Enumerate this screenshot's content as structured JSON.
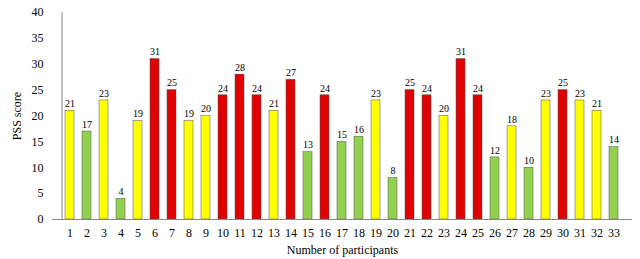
{
  "chart_data": {
    "type": "bar",
    "x_label": "Number of participants",
    "y_label": "PSS score",
    "categories": [
      "1",
      "2",
      "3",
      "4",
      "5",
      "6",
      "7",
      "8",
      "9",
      "10",
      "11",
      "12",
      "13",
      "14",
      "15",
      "16",
      "17",
      "18",
      "19",
      "20",
      "21",
      "22",
      "23",
      "24",
      "25",
      "26",
      "27",
      "28",
      "29",
      "30",
      "31",
      "32",
      "33"
    ],
    "values": [
      21,
      17,
      23,
      4,
      19,
      31,
      25,
      19,
      20,
      24,
      28,
      24,
      21,
      27,
      13,
      24,
      15,
      16,
      23,
      8,
      25,
      24,
      20,
      31,
      24,
      12,
      18,
      10,
      23,
      25,
      23,
      21,
      14
    ],
    "colors": [
      "#ffff00",
      "#92d050",
      "#ffff00",
      "#92d050",
      "#ffff00",
      "#e00000",
      "#e00000",
      "#ffff00",
      "#ffff00",
      "#e00000",
      "#e00000",
      "#e00000",
      "#ffff00",
      "#e00000",
      "#92d050",
      "#e00000",
      "#92d050",
      "#92d050",
      "#ffff00",
      "#92d050",
      "#e00000",
      "#e00000",
      "#ffff00",
      "#e00000",
      "#e00000",
      "#92d050",
      "#ffff00",
      "#92d050",
      "#ffff00",
      "#e00000",
      "#ffff00",
      "#ffff00",
      "#92d050"
    ],
    "ylim": [
      0,
      40
    ],
    "yticks": [
      0,
      5,
      10,
      15,
      20,
      25,
      30,
      35,
      40
    ],
    "grid": false,
    "data_labels": true
  }
}
